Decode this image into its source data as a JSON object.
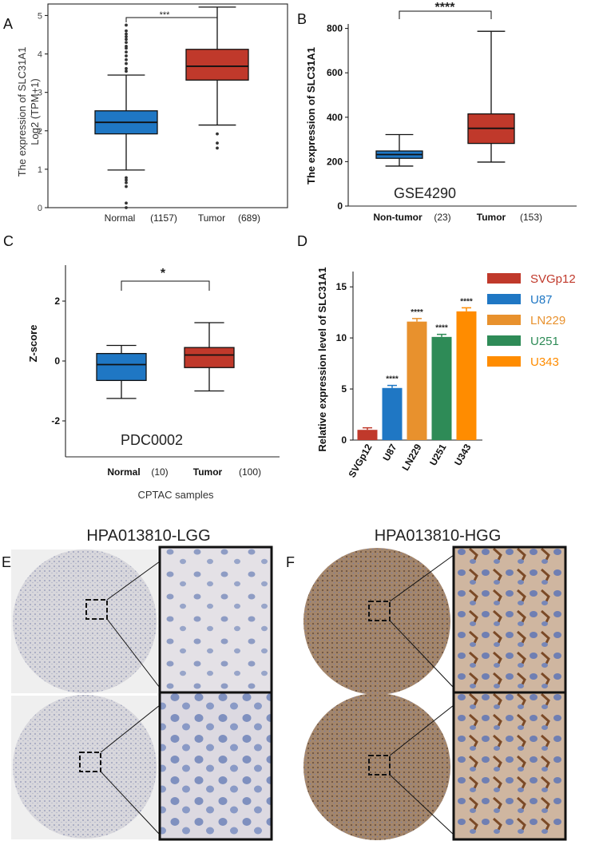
{
  "panels": {
    "A": {
      "label": "A"
    },
    "B": {
      "label": "B"
    },
    "C": {
      "label": "C"
    },
    "D": {
      "label": "D"
    },
    "E": {
      "label": "E"
    },
    "F": {
      "label": "F"
    }
  },
  "colors": {
    "normal": "#1f77c4",
    "tumor": "#c0392b",
    "svgp12": "#c0392b",
    "u87": "#1f77c4",
    "ln229": "#e8912d",
    "u251": "#2e8b57",
    "u343": "#ff8c00",
    "tissue_lgg": "#d9d8dc",
    "tissue_hgg": "#9a7b60"
  },
  "chart_data": [
    {
      "panel": "A",
      "type": "box",
      "ylabel_line1": "The expression of SLC31A1",
      "ylabel_line2": "Log2 (TPM+1)",
      "yticks": [
        "0",
        "1",
        "2",
        "3",
        "4",
        "5"
      ],
      "ylim": [
        0,
        5.3
      ],
      "significance": "***",
      "groups": [
        {
          "name": "Normal",
          "n": "(1157)",
          "min": 0.98,
          "q1": 1.92,
          "median": 2.22,
          "q3": 2.52,
          "max": 3.45,
          "outliers": [
            0.0,
            0.12,
            0.55,
            0.65,
            0.72,
            0.78,
            3.55,
            3.62,
            3.75,
            3.85,
            3.95,
            4.05,
            4.15,
            4.2,
            4.3,
            4.38,
            4.45,
            4.52,
            4.6,
            4.75
          ]
        },
        {
          "name": "Tumor",
          "n": "(689)",
          "min": 2.15,
          "q1": 3.32,
          "median": 3.68,
          "q3": 4.12,
          "max": 5.22,
          "outliers": [
            1.55,
            1.68,
            1.92
          ]
        }
      ]
    },
    {
      "panel": "B",
      "type": "box",
      "ylabel": "The expression of SLC31A1",
      "yticks": [
        "0",
        "200",
        "400",
        "600",
        "800"
      ],
      "ylim": [
        0,
        820
      ],
      "significance": "****",
      "dataset": "GSE4290",
      "groups": [
        {
          "name": "Non-tumor",
          "n": "(23)",
          "min": 180,
          "q1": 215,
          "median": 232,
          "q3": 248,
          "max": 322
        },
        {
          "name": "Tumor",
          "n": "(153)",
          "min": 198,
          "q1": 282,
          "median": 350,
          "q3": 415,
          "max": 787
        }
      ]
    },
    {
      "panel": "C",
      "type": "box",
      "ylabel": "Z-score",
      "yticks": [
        "2",
        "0",
        "-2"
      ],
      "ytick_values": [
        2,
        0,
        -2
      ],
      "ylim": [
        -3.2,
        3.2
      ],
      "significance": "*",
      "dataset": "PDC0002",
      "xlabel": "CPTAC samples",
      "groups": [
        {
          "name": "Normal",
          "n": "(10)",
          "min": -1.25,
          "q1": -0.65,
          "median": -0.12,
          "q3": 0.25,
          "max": 0.52
        },
        {
          "name": "Tumor",
          "n": "(100)",
          "min": -1.0,
          "q1": -0.22,
          "median": 0.2,
          "q3": 0.45,
          "max": 1.28
        }
      ]
    },
    {
      "panel": "D",
      "type": "bar",
      "ylabel": "Relative expression level of SLC31A1",
      "yticks": [
        "0",
        "5",
        "10",
        "15"
      ],
      "ylim": [
        0,
        16.5
      ],
      "categories": [
        "SVGp12",
        "U87",
        "LN229",
        "U251",
        "U343"
      ],
      "values": [
        1.0,
        5.1,
        11.6,
        10.1,
        12.6
      ],
      "errors": [
        0.2,
        0.25,
        0.3,
        0.25,
        0.35
      ],
      "significance": [
        "",
        "****",
        "****",
        "****",
        "****"
      ],
      "legend": [
        "SVGp12",
        "U87",
        "LN229",
        "U251",
        "U343"
      ]
    }
  ],
  "ihc": {
    "lgg_title": "HPA013810-LGG",
    "hgg_title": "HPA013810-HGG"
  }
}
